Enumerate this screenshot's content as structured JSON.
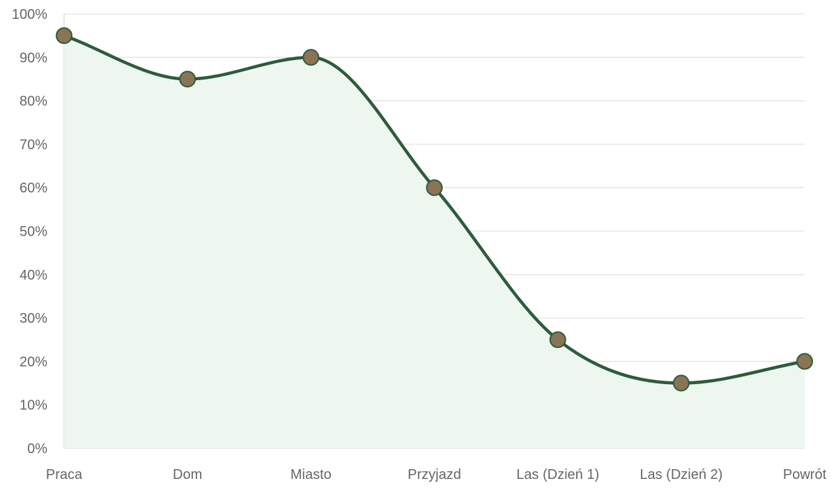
{
  "chart_data": {
    "type": "area",
    "title": "",
    "xlabel": "",
    "ylabel": "",
    "categories": [
      "Praca",
      "Dom",
      "Miasto",
      "Przyjazd",
      "Las (Dzień 1)",
      "Las (Dzień 2)",
      "Powrót"
    ],
    "series": [
      {
        "name": "",
        "values": [
          95,
          85,
          90,
          60,
          25,
          15,
          20
        ]
      }
    ],
    "ylim": [
      0,
      100
    ],
    "yticks": [
      {
        "value": 0,
        "label": "0%"
      },
      {
        "value": 10,
        "label": "10%"
      },
      {
        "value": 20,
        "label": "20%"
      },
      {
        "value": 30,
        "label": "30%"
      },
      {
        "value": 40,
        "label": "40%"
      },
      {
        "value": 50,
        "label": "50%"
      },
      {
        "value": 60,
        "label": "60%"
      },
      {
        "value": 70,
        "label": "70%"
      },
      {
        "value": 80,
        "label": "80%"
      },
      {
        "value": 90,
        "label": "90%"
      },
      {
        "value": 100,
        "label": "100%"
      }
    ],
    "grid": true,
    "legend": "none",
    "smooth": true,
    "colors": {
      "line": "#2d5b3c",
      "fill": "#edf6ef",
      "point_fill": "#8b7355",
      "point_stroke": "#2d5b3c",
      "grid": "#e3e3e3",
      "tick_text": "#666666"
    }
  }
}
